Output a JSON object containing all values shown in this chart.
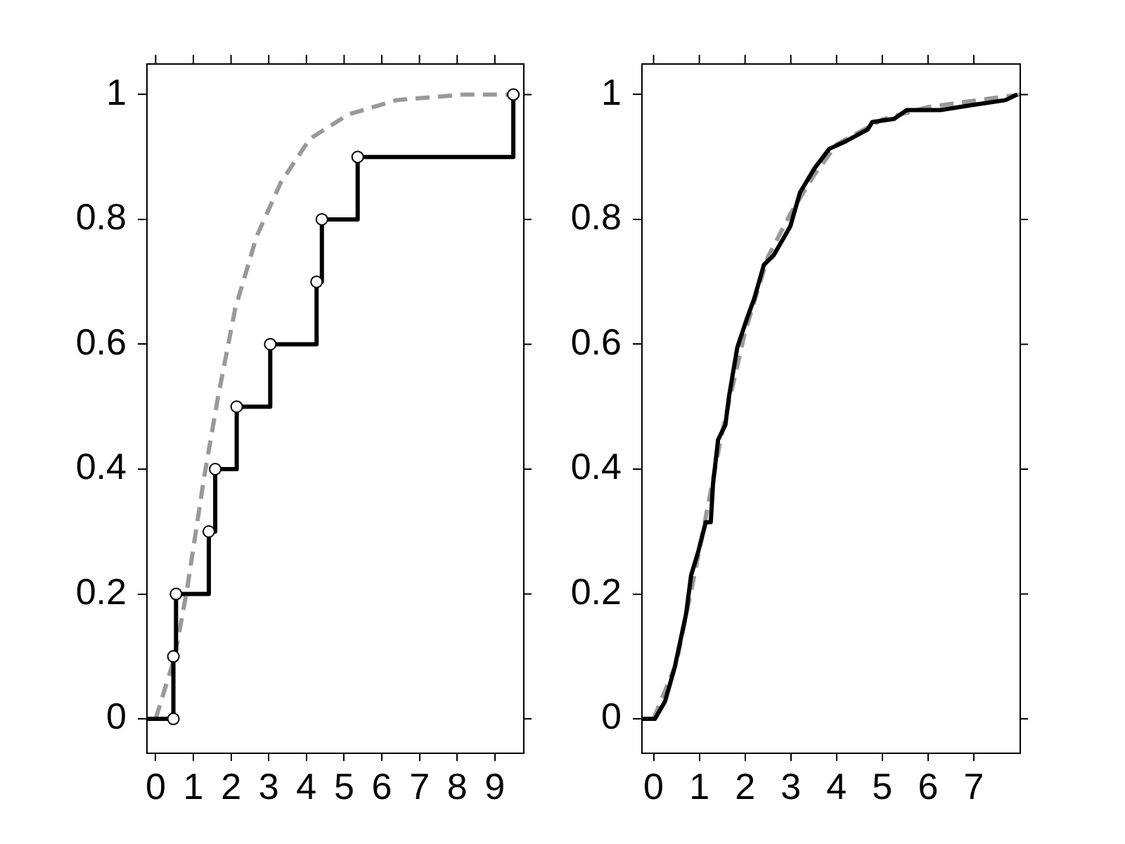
{
  "chart_data": [
    {
      "type": "step",
      "xlim": [
        -0.25,
        9.75
      ],
      "ylim": [
        -0.054,
        1.05
      ],
      "xticks": [
        0,
        1,
        2,
        3,
        4,
        5,
        6,
        7,
        8,
        9
      ],
      "yticks": [
        0,
        0.2,
        0.4,
        0.6,
        0.8,
        1
      ],
      "grid": false,
      "legend": false,
      "series": [
        {
          "color": "#000000",
          "marker": "circle",
          "line_style": "solid",
          "x": [
            -0.25,
            0.47,
            0.47,
            0.54,
            1.41,
            1.58,
            2.15,
            3.04,
            4.27,
            4.41,
            5.36,
            9.49
          ],
          "values": [
            0,
            0,
            0.1,
            0.2,
            0.3,
            0.4,
            0.5,
            0.6,
            0.7,
            0.8,
            0.9,
            1
          ]
        },
        {
          "type": "line",
          "color": "#999999",
          "marker": "none",
          "line_style": "dashed",
          "x": [
            0,
            0.5,
            0.83,
            1.28,
            1.66,
            2.11,
            2.68,
            3.32,
            4.09,
            5.11,
            6.39,
            8.18,
            9.72
          ],
          "values": [
            0,
            0.098,
            0.206,
            0.385,
            0.517,
            0.657,
            0.773,
            0.859,
            0.929,
            0.968,
            0.991,
            1,
            1
          ]
        }
      ]
    },
    {
      "type": "line",
      "xlim": [
        -0.27,
        8.0
      ],
      "ylim": [
        -0.054,
        1.05
      ],
      "xticks": [
        0,
        1,
        2,
        3,
        4,
        5,
        6,
        7
      ],
      "yticks": [
        0,
        0.2,
        0.4,
        0.6,
        0.8,
        1
      ],
      "grid": false,
      "legend": false,
      "series": [
        {
          "color": "#000000",
          "marker": "none",
          "line_style": "solid",
          "x": [
            -0.27,
            0.03,
            0.25,
            0.46,
            0.71,
            0.82,
            0.98,
            1.14,
            1.25,
            1.3,
            1.41,
            1.57,
            1.65,
            1.83,
            2.04,
            2.2,
            2.41,
            2.62,
            2.99,
            3.2,
            3.52,
            3.84,
            4.2,
            4.68,
            4.78,
            5.26,
            5.53,
            6.27,
            6.95,
            7.69,
            7.95
          ],
          "values": [
            0,
            0,
            0.028,
            0.082,
            0.168,
            0.23,
            0.269,
            0.315,
            0.315,
            0.377,
            0.447,
            0.471,
            0.517,
            0.595,
            0.641,
            0.673,
            0.727,
            0.742,
            0.789,
            0.843,
            0.882,
            0.913,
            0.925,
            0.944,
            0.956,
            0.961,
            0.975,
            0.975,
            0.983,
            0.991,
            1
          ]
        },
        {
          "color": "#999999",
          "marker": "none",
          "line_style": "dashed",
          "x": [
            0,
            0.5,
            1,
            1.5,
            2,
            2.5,
            3,
            3.5,
            4,
            5,
            6,
            7,
            8
          ],
          "values": [
            0,
            0.09,
            0.27,
            0.46,
            0.62,
            0.74,
            0.81,
            0.87,
            0.92,
            0.96,
            0.98,
            0.99,
            1
          ]
        }
      ]
    }
  ]
}
